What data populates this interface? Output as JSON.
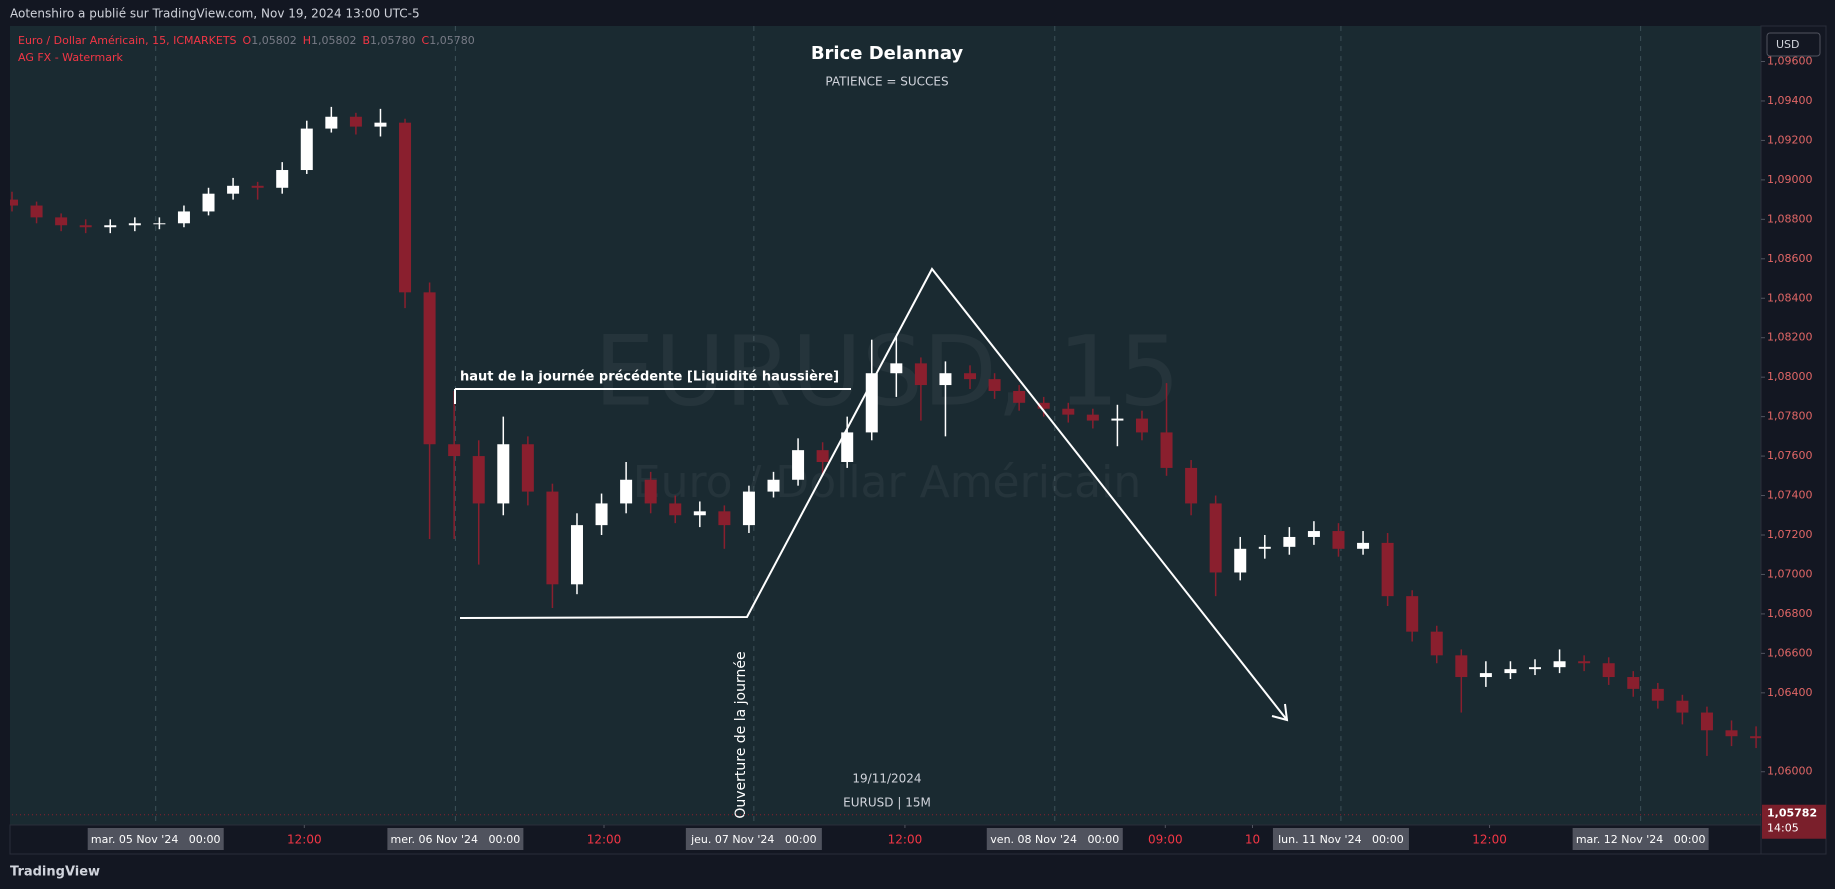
{
  "header": {
    "text": "Aotenshiro a publié sur TradingView.com, Nov 19, 2024 13:00 UTC-5"
  },
  "footer": {
    "brand": "TradingView"
  },
  "chart_data": {
    "type": "candlestick",
    "title": "Brice Delannay",
    "subtitle": "PATIENCE = SUCCES",
    "symbol_line": "Euro / Dollar Américain, 15, ICMARKETS",
    "ohlc_legend": [
      {
        "key": "O",
        "value": "1,05802"
      },
      {
        "key": "H",
        "value": "1,05802"
      },
      {
        "key": "B",
        "value": "1,05780"
      },
      {
        "key": "C",
        "value": "1,05780"
      }
    ],
    "indicator_line": "AG FX - Watermark",
    "watermark": {
      "symbol": "EURUSD, 15",
      "name": "Euro / Dollar Américain"
    },
    "annotations": {
      "previous_high": "haut de la journée précédente [Liquidité haussière]",
      "day_open": "Ouverture de la journée",
      "date": "19/11/2024",
      "pair": "EURUSD | 15M"
    },
    "currency": "USD",
    "last_price": {
      "value": 1.05782,
      "label": "1,05782"
    },
    "countdown": "14:05",
    "colors": {
      "up": "#ffffff",
      "down": "#8a1f2e"
    },
    "x": [
      0,
      2,
      4,
      6,
      8,
      10,
      12,
      14,
      16,
      18,
      20,
      22,
      24,
      26,
      28,
      30,
      32,
      34,
      36,
      38,
      40,
      42,
      44,
      46,
      48,
      50,
      52,
      54,
      56,
      58,
      60,
      62,
      64,
      66,
      68,
      70,
      72,
      74,
      76,
      78,
      80,
      82,
      84,
      86,
      88,
      90,
      92,
      94,
      96,
      98,
      100,
      102,
      104,
      106,
      108,
      110,
      112,
      114,
      116,
      118,
      120,
      122,
      124,
      126,
      128,
      130,
      132,
      134,
      136,
      138,
      140,
      142
    ],
    "open": [
      1.089,
      1.0887,
      1.0881,
      1.0877,
      1.0876,
      1.0877,
      1.0878,
      1.0878,
      1.0884,
      1.0893,
      1.0897,
      1.0896,
      1.0905,
      1.0926,
      1.0932,
      1.0927,
      1.0929,
      1.0843,
      1.0766,
      1.076,
      1.0736,
      1.0766,
      1.0742,
      1.0695,
      1.0725,
      1.0736,
      1.0748,
      1.0736,
      1.073,
      1.0732,
      1.0725,
      1.0742,
      1.0748,
      1.0763,
      1.0757,
      1.0772,
      1.0802,
      1.0807,
      1.0796,
      1.0802,
      1.0799,
      1.0793,
      1.0787,
      1.0784,
      1.0781,
      1.0778,
      1.0779,
      1.0772,
      1.0754,
      1.0736,
      1.0701,
      1.0713,
      1.0714,
      1.0719,
      1.0722,
      1.0713,
      1.0716,
      1.0689,
      1.0671,
      1.0659,
      1.0648,
      1.065,
      1.0652,
      1.0653,
      1.0656,
      1.0655,
      1.0648,
      1.0642,
      1.0636,
      1.063,
      1.0621,
      1.0618
    ],
    "high": [
      1.0894,
      1.0889,
      1.0883,
      1.088,
      1.088,
      1.0881,
      1.0881,
      1.0887,
      1.0896,
      1.0901,
      1.0899,
      1.0909,
      1.093,
      1.0937,
      1.0934,
      1.0936,
      1.0931,
      1.0848,
      1.0793,
      1.0768,
      1.078,
      1.077,
      1.0746,
      1.0731,
      1.0741,
      1.0757,
      1.0752,
      1.074,
      1.0737,
      1.0735,
      1.0745,
      1.0752,
      1.0769,
      1.0767,
      1.078,
      1.0819,
      1.0821,
      1.081,
      1.0808,
      1.0806,
      1.0802,
      1.0796,
      1.079,
      1.0787,
      1.0784,
      1.0786,
      1.0783,
      1.0797,
      1.0758,
      1.074,
      1.0719,
      1.072,
      1.0724,
      1.0727,
      1.0726,
      1.0722,
      1.0721,
      1.0692,
      1.0674,
      1.0662,
      1.0656,
      1.0656,
      1.0657,
      1.0662,
      1.0659,
      1.0658,
      1.0651,
      1.0645,
      1.0639,
      1.0633,
      1.0626,
      1.0623
    ],
    "low": [
      1.0884,
      1.0878,
      1.0874,
      1.0873,
      1.0873,
      1.0874,
      1.0875,
      1.0876,
      1.0882,
      1.089,
      1.089,
      1.0893,
      1.0903,
      1.0924,
      1.0923,
      1.0922,
      1.0835,
      1.0718,
      1.0718,
      1.0705,
      1.073,
      1.0735,
      1.0683,
      1.069,
      1.072,
      1.0731,
      1.0731,
      1.0726,
      1.0724,
      1.0713,
      1.0721,
      1.0739,
      1.0745,
      1.075,
      1.0754,
      1.0768,
      1.079,
      1.0778,
      1.077,
      1.0794,
      1.0789,
      1.0783,
      1.078,
      1.0777,
      1.0774,
      1.0765,
      1.0768,
      1.075,
      1.073,
      1.0689,
      1.0697,
      1.0708,
      1.071,
      1.0715,
      1.0709,
      1.071,
      1.0684,
      1.0666,
      1.0655,
      1.063,
      1.0643,
      1.0647,
      1.0649,
      1.065,
      1.0651,
      1.0644,
      1.0638,
      1.0632,
      1.0624,
      1.0608,
      1.0613,
      1.0612
    ],
    "close": [
      1.0887,
      1.0881,
      1.0877,
      1.0876,
      1.0877,
      1.0878,
      1.0878,
      1.0884,
      1.0893,
      1.0897,
      1.0896,
      1.0905,
      1.0926,
      1.0932,
      1.0927,
      1.0929,
      1.0843,
      1.0766,
      1.076,
      1.0736,
      1.0766,
      1.0742,
      1.0695,
      1.0725,
      1.0736,
      1.0748,
      1.0736,
      1.073,
      1.0732,
      1.0725,
      1.0742,
      1.0748,
      1.0763,
      1.0757,
      1.0772,
      1.0802,
      1.0807,
      1.0796,
      1.0802,
      1.0799,
      1.0793,
      1.0787,
      1.0784,
      1.0781,
      1.0778,
      1.0779,
      1.0772,
      1.0754,
      1.0736,
      1.0701,
      1.0713,
      1.0714,
      1.0719,
      1.0722,
      1.0713,
      1.0716,
      1.0689,
      1.0671,
      1.0659,
      1.0648,
      1.065,
      1.0652,
      1.0653,
      1.0656,
      1.0655,
      1.0648,
      1.0642,
      1.0636,
      1.063,
      1.0621,
      1.0618,
      1.0617
    ],
    "xlim": [
      0,
      142.4
    ],
    "xticks": [
      {
        "value": 11.7,
        "label": "mar. 05 Nov '24   00:00"
      },
      {
        "value": 36.1,
        "label": "mer. 06 Nov '24   00:00"
      },
      {
        "value": 60.4,
        "label": "jeu. 07 Nov '24   00:00"
      },
      {
        "value": 84.9,
        "label": "ven. 08 Nov '24   00:00"
      },
      {
        "value": 108.2,
        "label": "lun. 11 Nov '24   00:00"
      },
      {
        "value": 132.6,
        "label": "mar. 12 Nov '24   00:00"
      }
    ],
    "xticks_minor": [
      {
        "value": 23.8,
        "label": "12:00"
      },
      {
        "value": 48.2,
        "label": "12:00"
      },
      {
        "value": 72.7,
        "label": "12:00"
      },
      {
        "value": 93.9,
        "label": "09:00"
      },
      {
        "value": 101.0,
        "label": "10"
      },
      {
        "value": 120.3,
        "label": "12:00"
      }
    ],
    "ylim": [
      1.0573,
      1.0978
    ],
    "yticks": [
      {
        "value": 1.06,
        "label": "1,06000"
      },
      {
        "value": 1.064,
        "label": "1,06400"
      },
      {
        "value": 1.066,
        "label": "1,06600"
      },
      {
        "value": 1.068,
        "label": "1,06800"
      },
      {
        "value": 1.07,
        "label": "1,07000"
      },
      {
        "value": 1.072,
        "label": "1,07200"
      },
      {
        "value": 1.074,
        "label": "1,07400"
      },
      {
        "value": 1.076,
        "label": "1,07600"
      },
      {
        "value": 1.078,
        "label": "1,07800"
      },
      {
        "value": 1.08,
        "label": "1,08000"
      },
      {
        "value": 1.082,
        "label": "1,08200"
      },
      {
        "value": 1.084,
        "label": "1,08400"
      },
      {
        "value": 1.086,
        "label": "1,08600"
      },
      {
        "value": 1.088,
        "label": "1,08800"
      },
      {
        "value": 1.09,
        "label": "1,09000"
      },
      {
        "value": 1.092,
        "label": "1,09200"
      },
      {
        "value": 1.094,
        "label": "1,09400"
      },
      {
        "value": 1.096,
        "label": "1,09600"
      }
    ]
  }
}
